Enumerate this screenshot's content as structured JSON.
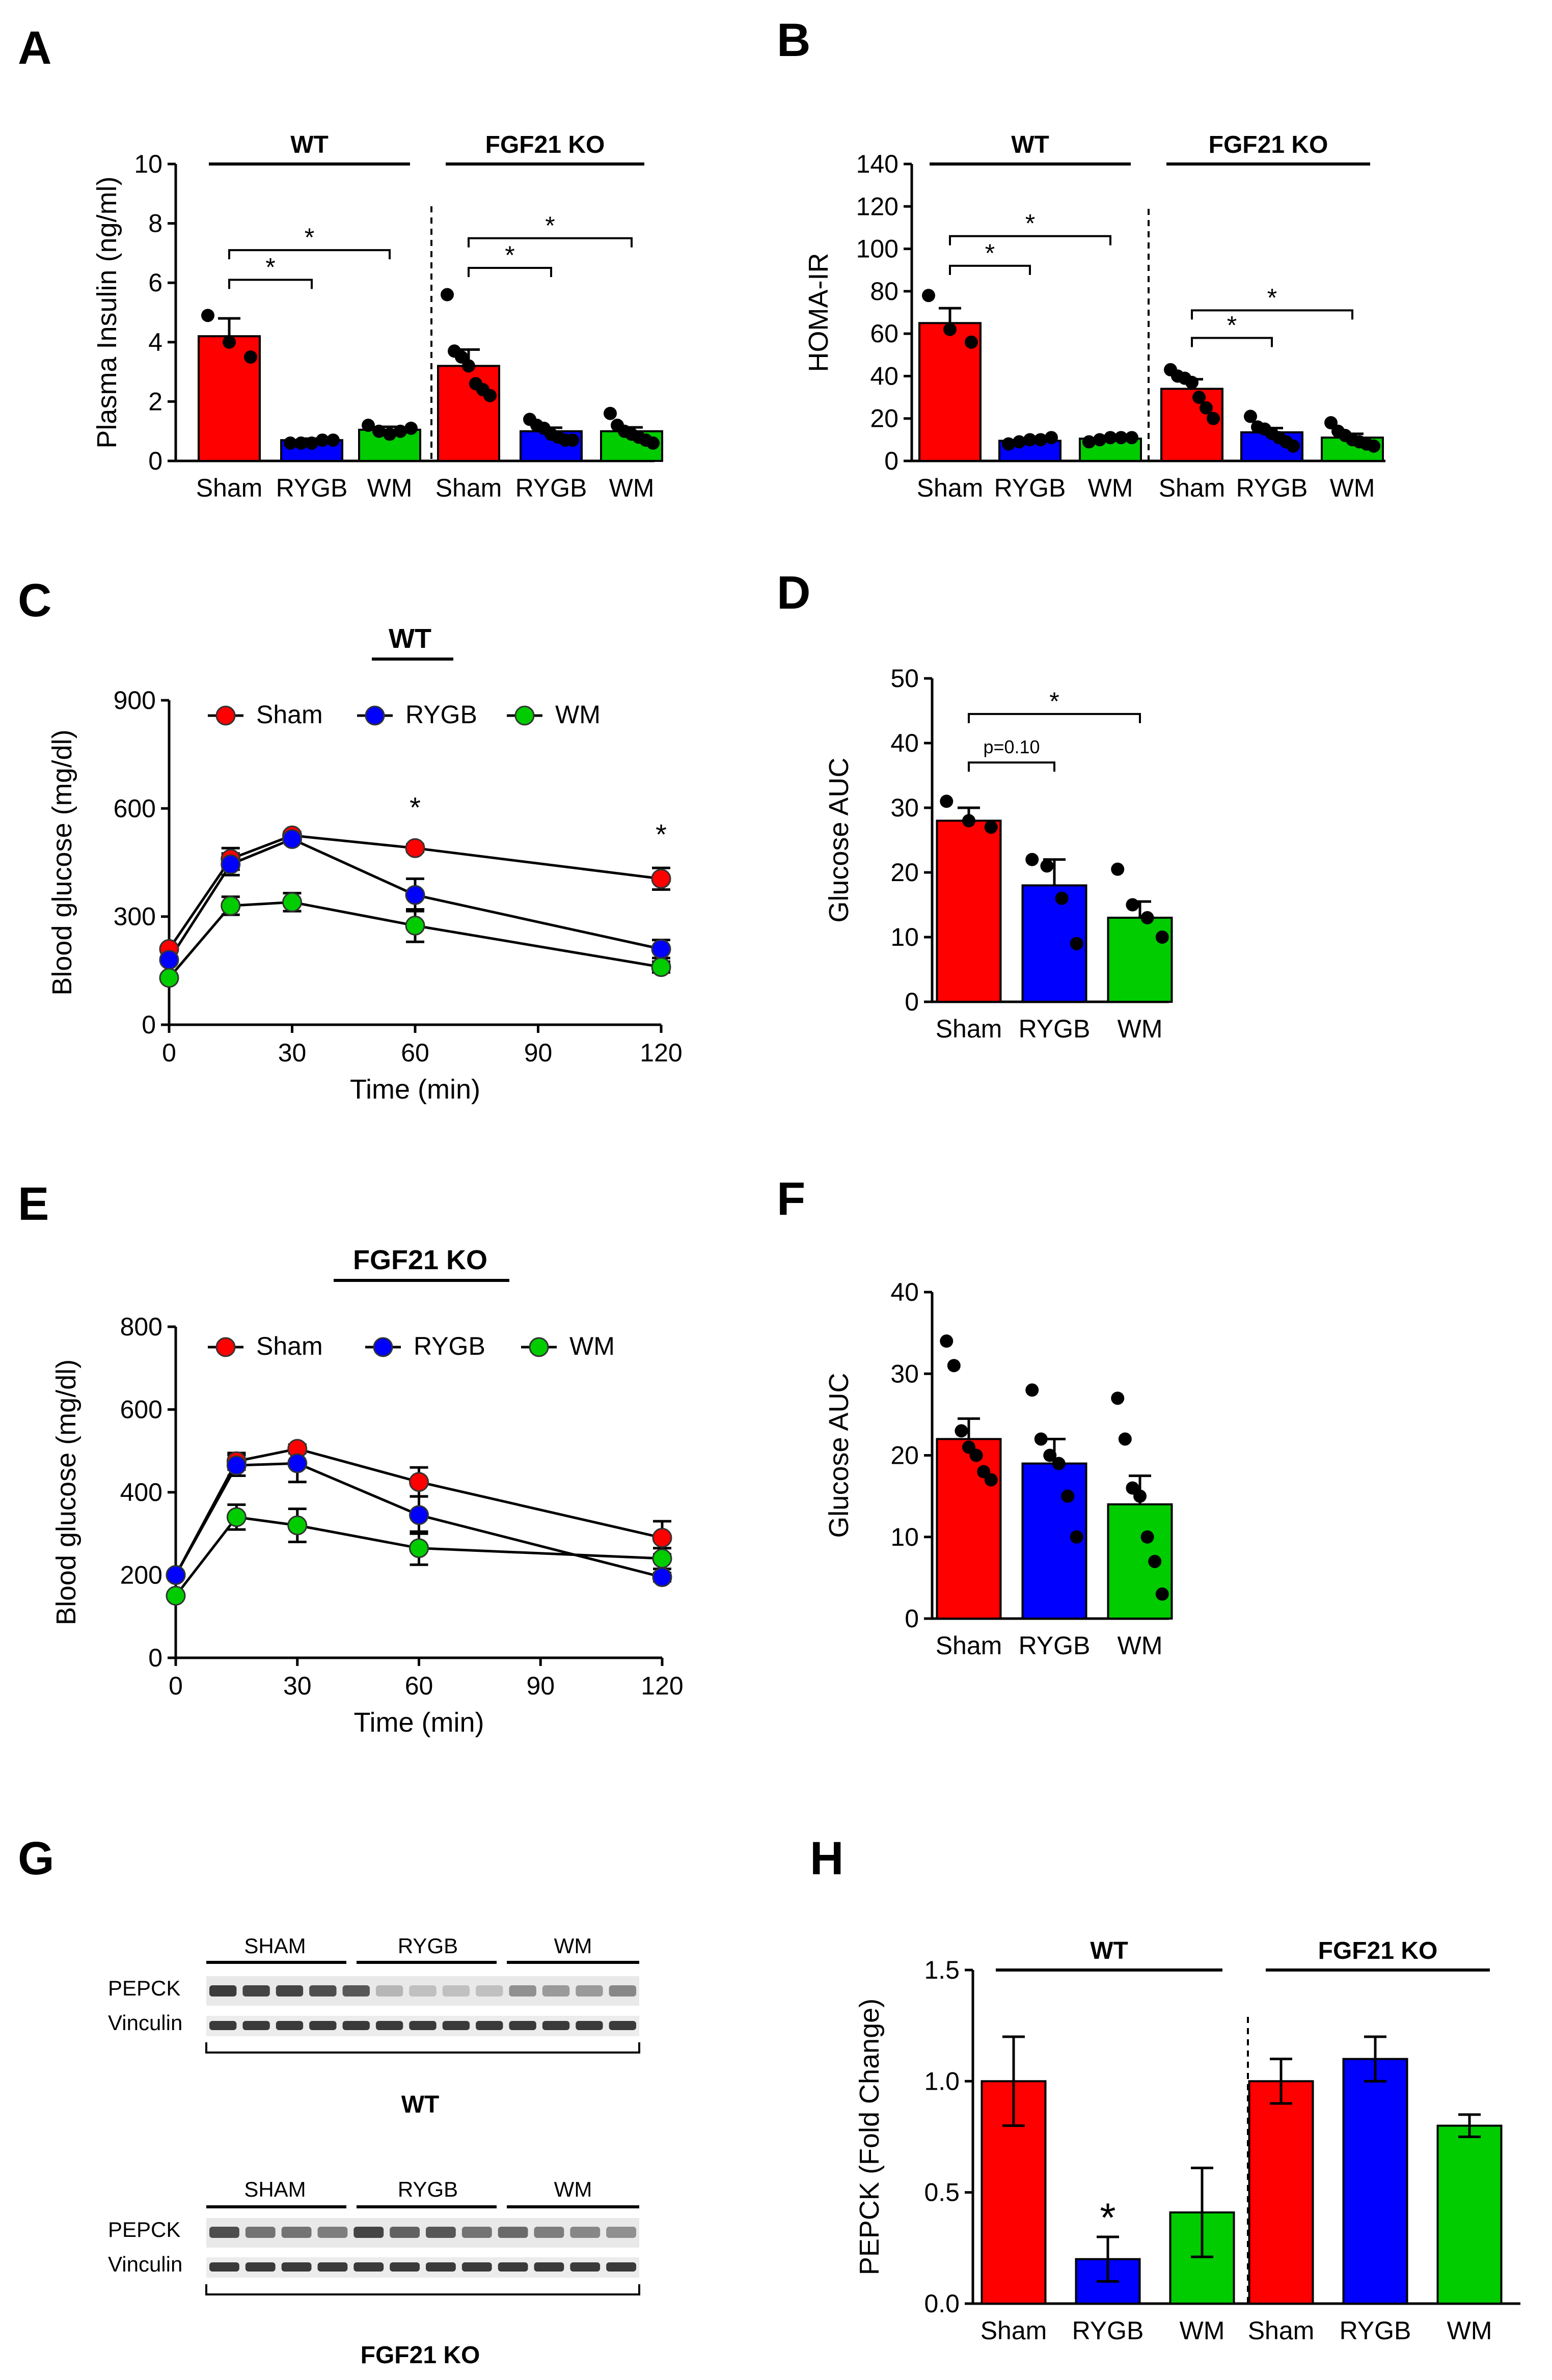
{
  "colors": {
    "sham": "#ff0000",
    "rygb": "#0000ff",
    "wm": "#00cc00"
  },
  "chart_data": [
    {
      "panel": "A",
      "type": "bar",
      "ylabel": "Plasma Insulin (ng/ml)",
      "ylim": [
        0,
        10
      ],
      "yticks": [
        0,
        2,
        4,
        6,
        8,
        10
      ],
      "groups": [
        {
          "label": "WT",
          "bars": [
            {
              "cat": "Sham",
              "value": 4.2,
              "sem": 0.6,
              "points": [
                4.9,
                4.0,
                3.5
              ]
            },
            {
              "cat": "RYGB",
              "value": 0.7,
              "sem": 0.05,
              "points": [
                0.6,
                0.6,
                0.6,
                0.7,
                0.7
              ]
            },
            {
              "cat": "WM",
              "value": 1.05,
              "sem": 0.1,
              "points": [
                1.2,
                1.0,
                0.9,
                1.0,
                1.1
              ]
            }
          ]
        },
        {
          "label": "FGF21 KO",
          "bars": [
            {
              "cat": "Sham",
              "value": 3.2,
              "sem": 0.55,
              "points": [
                5.6,
                3.7,
                3.5,
                3.2,
                2.6,
                2.4,
                2.2
              ]
            },
            {
              "cat": "RYGB",
              "value": 1.0,
              "sem": 0.12,
              "points": [
                1.4,
                1.2,
                1.1,
                0.9,
                0.8,
                0.7,
                0.7
              ]
            },
            {
              "cat": "WM",
              "value": 1.0,
              "sem": 0.13,
              "points": [
                1.6,
                1.2,
                1.0,
                0.9,
                0.8,
                0.7,
                0.6
              ]
            }
          ]
        }
      ],
      "brackets": [
        {
          "group": 0,
          "from": 0,
          "to": 1,
          "y": 6.1,
          "label": "*"
        },
        {
          "group": 0,
          "from": 0,
          "to": 2,
          "y": 7.1,
          "label": "*"
        },
        {
          "group": 1,
          "from": 0,
          "to": 1,
          "y": 6.5,
          "label": "*"
        },
        {
          "group": 1,
          "from": 0,
          "to": 2,
          "y": 7.5,
          "label": "*"
        }
      ]
    },
    {
      "panel": "B",
      "type": "bar",
      "ylabel": "HOMA-IR",
      "ylim": [
        0,
        140
      ],
      "yticks": [
        0,
        20,
        40,
        60,
        80,
        100,
        120,
        140
      ],
      "groups": [
        {
          "label": "WT",
          "bars": [
            {
              "cat": "Sham",
              "value": 65,
              "sem": 7,
              "points": [
                78,
                62,
                56
              ]
            },
            {
              "cat": "RYGB",
              "value": 9.5,
              "sem": 0.8,
              "points": [
                8,
                9,
                10,
                10,
                11
              ]
            },
            {
              "cat": "WM",
              "value": 10.5,
              "sem": 0.8,
              "points": [
                9,
                10,
                11,
                11,
                11
              ]
            }
          ]
        },
        {
          "label": "FGF21 KO",
          "bars": [
            {
              "cat": "Sham",
              "value": 34,
              "sem": 4.5,
              "points": [
                43,
                40,
                39,
                37,
                30,
                25,
                20
              ]
            },
            {
              "cat": "RYGB",
              "value": 13.5,
              "sem": 2,
              "points": [
                21,
                16,
                15,
                13,
                11,
                9,
                7
              ]
            },
            {
              "cat": "WM",
              "value": 11,
              "sem": 1.8,
              "points": [
                18,
                14,
                12,
                10,
                9,
                8,
                7
              ]
            }
          ]
        }
      ],
      "brackets": [
        {
          "group": 0,
          "from": 0,
          "to": 1,
          "y": 92,
          "label": "*"
        },
        {
          "group": 0,
          "from": 0,
          "to": 2,
          "y": 106,
          "label": "*"
        },
        {
          "group": 1,
          "from": 0,
          "to": 1,
          "y": 58,
          "label": "*"
        },
        {
          "group": 1,
          "from": 0,
          "to": 2,
          "y": 71,
          "label": "*"
        }
      ]
    },
    {
      "panel": "C",
      "type": "line",
      "title": "WT",
      "xlabel": "Time (min)",
      "ylabel": "Blood glucose (mg/dl)",
      "xlim": [
        0,
        120
      ],
      "xticks": [
        0,
        30,
        60,
        90,
        120
      ],
      "ylim": [
        0,
        900
      ],
      "yticks": [
        0,
        300,
        600,
        900
      ],
      "x": [
        0,
        15,
        30,
        60,
        120
      ],
      "series": [
        {
          "name": "Sham",
          "values": [
            210,
            460,
            525,
            490,
            405
          ],
          "sem": [
            0,
            30,
            10,
            10,
            30
          ]
        },
        {
          "name": "RYGB",
          "values": [
            180,
            445,
            515,
            360,
            210
          ],
          "sem": [
            0,
            30,
            10,
            45,
            25
          ]
        },
        {
          "name": "WM",
          "values": [
            130,
            330,
            340,
            275,
            160
          ],
          "sem": [
            0,
            25,
            25,
            45,
            15
          ]
        }
      ],
      "annotations": [
        {
          "x": 60,
          "y": 590,
          "text": "*"
        },
        {
          "x": 120,
          "y": 515,
          "text": "*"
        }
      ]
    },
    {
      "panel": "D",
      "type": "bar",
      "ylabel": "Glucose AUC",
      "ylim": [
        0,
        50
      ],
      "yticks": [
        0,
        10,
        20,
        30,
        40,
        50
      ],
      "groups": [
        {
          "label": "",
          "bars": [
            {
              "cat": "Sham",
              "value": 28,
              "sem": 2,
              "points": [
                31,
                28,
                27
              ]
            },
            {
              "cat": "RYGB",
              "value": 18,
              "sem": 4,
              "points": [
                22,
                21,
                16,
                9
              ]
            },
            {
              "cat": "WM",
              "value": 13,
              "sem": 2.5,
              "points": [
                20.5,
                15,
                13,
                10
              ]
            }
          ]
        }
      ],
      "brackets": [
        {
          "group": 0,
          "from": 0,
          "to": 1,
          "y": 37,
          "label": "p=0.10"
        },
        {
          "group": 0,
          "from": 0,
          "to": 2,
          "y": 44.5,
          "label": "*"
        }
      ]
    },
    {
      "panel": "E",
      "type": "line",
      "title": "FGF21 KO",
      "xlabel": "Time (min)",
      "ylabel": "Blood glucose (mg/dl)",
      "xlim": [
        0,
        120
      ],
      "xticks": [
        0,
        30,
        60,
        90,
        120
      ],
      "ylim": [
        0,
        800
      ],
      "yticks": [
        0,
        200,
        400,
        600,
        800
      ],
      "x": [
        0,
        15,
        30,
        60,
        120
      ],
      "series": [
        {
          "name": "Sham",
          "values": [
            200,
            475,
            505,
            425,
            290
          ],
          "sem": [
            0,
            20,
            10,
            35,
            40
          ]
        },
        {
          "name": "RYGB",
          "values": [
            200,
            465,
            470,
            345,
            195
          ],
          "sem": [
            0,
            25,
            45,
            45,
            10
          ]
        },
        {
          "name": "WM",
          "values": [
            150,
            340,
            320,
            265,
            240
          ],
          "sem": [
            0,
            30,
            40,
            40,
            25
          ]
        }
      ],
      "annotations": []
    },
    {
      "panel": "F",
      "type": "bar",
      "ylabel": "Glucose AUC",
      "ylim": [
        0,
        40
      ],
      "yticks": [
        0,
        10,
        20,
        30,
        40
      ],
      "groups": [
        {
          "label": "",
          "bars": [
            {
              "cat": "Sham",
              "value": 22,
              "sem": 2.5,
              "points": [
                34,
                31,
                23,
                21,
                20,
                18,
                17
              ]
            },
            {
              "cat": "RYGB",
              "value": 19,
              "sem": 3,
              "points": [
                28,
                22,
                20,
                19,
                15,
                10
              ]
            },
            {
              "cat": "WM",
              "value": 14,
              "sem": 3.5,
              "points": [
                27,
                22,
                16,
                15,
                10,
                7,
                3
              ]
            }
          ]
        }
      ],
      "brackets": []
    },
    {
      "panel": "H",
      "type": "bar",
      "ylabel": "PEPCK (Fold Change)",
      "ylim": [
        0,
        1.5
      ],
      "yticks": [
        0.0,
        0.5,
        1.0,
        1.5
      ],
      "tick_labels": [
        "0.0",
        "0.5",
        "1.0",
        "1.5"
      ],
      "groups": [
        {
          "label": "WT",
          "bars": [
            {
              "cat": "Sham",
              "value": 1.0,
              "sem": 0.2,
              "points": []
            },
            {
              "cat": "RYGB",
              "value": 0.2,
              "sem": 0.1,
              "points": []
            },
            {
              "cat": "WM",
              "value": 0.41,
              "sem": 0.2,
              "points": []
            }
          ]
        },
        {
          "label": "FGF21 KO",
          "bars": [
            {
              "cat": "Sham",
              "value": 1.0,
              "sem": 0.1,
              "points": []
            },
            {
              "cat": "RYGB",
              "value": 1.1,
              "sem": 0.1,
              "points": []
            },
            {
              "cat": "WM",
              "value": 0.8,
              "sem": 0.05,
              "points": []
            }
          ]
        }
      ],
      "brackets": [],
      "annotations": [
        {
          "group": 0,
          "bar": 1,
          "y": 0.37,
          "text": "*"
        }
      ]
    }
  ],
  "legend": [
    "Sham",
    "RYGB",
    "WM"
  ],
  "panels": {
    "a": "A",
    "b": "B",
    "c": "C",
    "d": "D",
    "e": "E",
    "f": "F",
    "g": "G",
    "h": "H"
  },
  "blots": {
    "group_labels": [
      "SHAM",
      "RYGB",
      "WM"
    ],
    "row_labels": [
      "PEPCK",
      "Vinculin"
    ],
    "wt_caption": "WT",
    "ko_caption": "FGF21 KO",
    "wt_pepck_intensity": [
      0.85,
      0.8,
      0.8,
      0.75,
      0.7,
      0.2,
      0.15,
      0.15,
      0.15,
      0.4,
      0.35,
      0.35,
      0.45
    ],
    "ko_pepck_intensity": [
      0.75,
      0.55,
      0.55,
      0.5,
      0.8,
      0.65,
      0.7,
      0.55,
      0.6,
      0.5,
      0.45,
      0.4
    ]
  }
}
